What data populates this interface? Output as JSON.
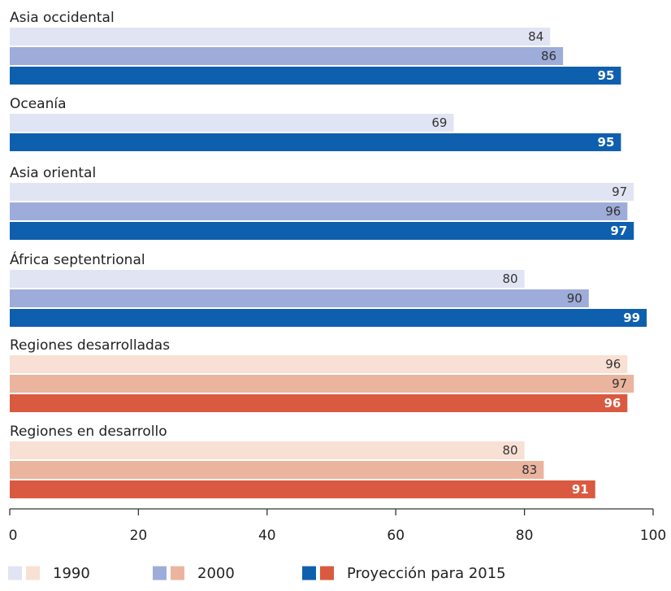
{
  "chart_data": {
    "type": "bar",
    "orientation": "horizontal",
    "xlim": [
      0,
      100
    ],
    "x_ticks": [
      "0",
      "20",
      "40",
      "60",
      "80",
      "100"
    ],
    "series_names": [
      "1990",
      "2000",
      "Proyección para 2015"
    ],
    "groups": [
      {
        "label": "Asia occidental",
        "palette": "blue",
        "bars": [
          {
            "series": "1990",
            "value": 84,
            "label": "84"
          },
          {
            "series": "2000",
            "value": 86,
            "label": "86"
          },
          {
            "series": "Proyección para 2015",
            "value": 95,
            "label": "95"
          }
        ]
      },
      {
        "label": "Oceanía",
        "palette": "blue",
        "bars": [
          {
            "series": "1990",
            "value": 69,
            "label": "69"
          },
          {
            "series": "Proyección para 2015",
            "value": 95,
            "label": "95"
          }
        ]
      },
      {
        "label": "Asia oriental",
        "palette": "blue",
        "bars": [
          {
            "series": "1990",
            "value": 97,
            "label": "97"
          },
          {
            "series": "2000",
            "value": 96,
            "label": "96"
          },
          {
            "series": "Proyección para 2015",
            "value": 97,
            "label": "97"
          }
        ]
      },
      {
        "label": "África septentrional",
        "palette": "blue",
        "bars": [
          {
            "series": "1990",
            "value": 80,
            "label": "80"
          },
          {
            "series": "2000",
            "value": 90,
            "label": "90"
          },
          {
            "series": "Proyección para 2015",
            "value": 99,
            "label": "99"
          }
        ]
      },
      {
        "label": "Regiones desarrolladas",
        "palette": "red",
        "bars": [
          {
            "series": "1990",
            "value": 96,
            "label": "96"
          },
          {
            "series": "2000",
            "value": 97,
            "label": "97"
          },
          {
            "series": "Proyección para 2015",
            "value": 96,
            "label": "96"
          }
        ]
      },
      {
        "label": "Regiones en desarrollo",
        "palette": "red",
        "bars": [
          {
            "series": "1990",
            "value": 80,
            "label": "80"
          },
          {
            "series": "2000",
            "value": 83,
            "label": "83"
          },
          {
            "series": "Proyección para 2015",
            "value": 91,
            "label": "91"
          }
        ]
      }
    ],
    "colors": {
      "blue": {
        "1990": "#e1e4f3",
        "2000": "#9eacd9",
        "Proyección para 2015": "#0f5faf"
      },
      "red": {
        "1990": "#f8e0d4",
        "2000": "#ebb49e",
        "Proyección para 2015": "#d95a40"
      }
    },
    "grid": false,
    "legend_position": "bottom"
  },
  "legend": [
    {
      "label": "1990",
      "colors": [
        "#e1e4f3",
        "#f8e0d4"
      ]
    },
    {
      "label": "2000",
      "colors": [
        "#9eacd9",
        "#ebb49e"
      ]
    },
    {
      "label": "Proyección para 2015",
      "colors": [
        "#0f5faf",
        "#d95a40"
      ]
    }
  ]
}
